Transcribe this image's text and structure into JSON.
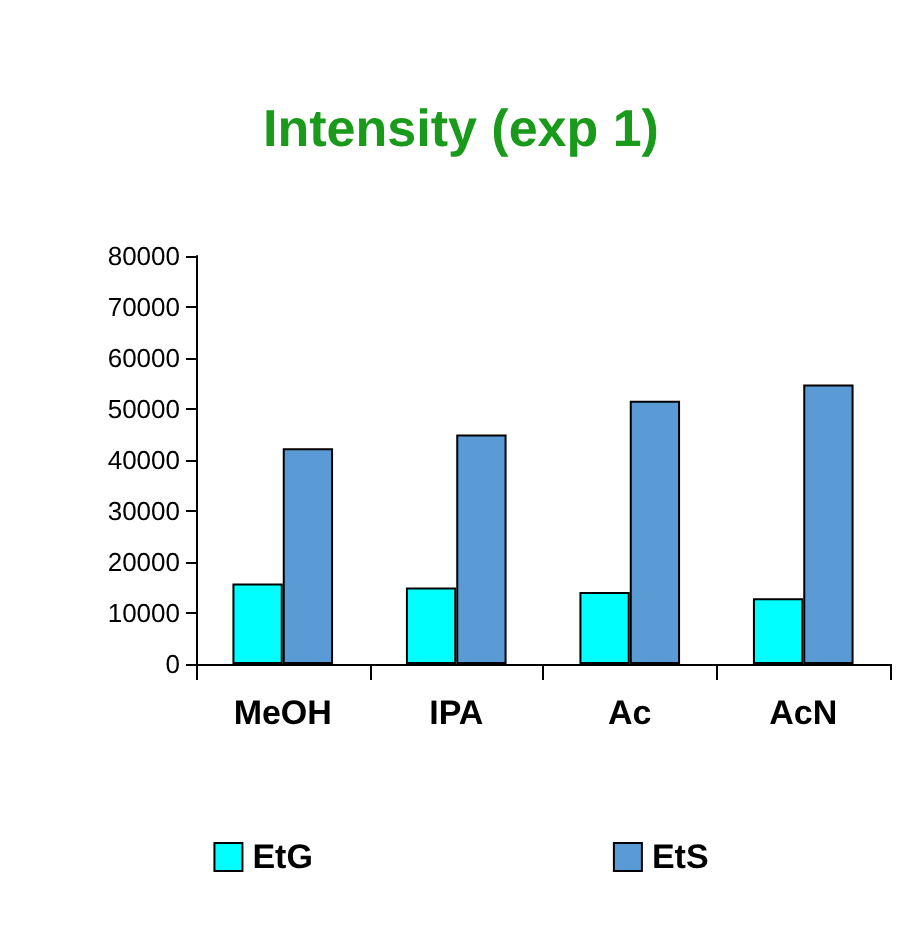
{
  "chart_data": {
    "type": "bar",
    "title": "Intensity (exp 1)",
    "categories": [
      "MeOH",
      "IPA",
      "Ac",
      "AcN"
    ],
    "series": [
      {
        "name": "EtG",
        "color": "#00ffff",
        "values": [
          15800,
          15000,
          14100,
          12900
        ]
      },
      {
        "name": "EtS",
        "color": "#5b9bd5",
        "values": [
          42300,
          45000,
          51600,
          54800
        ]
      }
    ],
    "ylim": [
      0,
      80000
    ],
    "yticks": [
      0,
      10000,
      20000,
      30000,
      40000,
      50000,
      60000,
      70000,
      80000
    ],
    "grid": false,
    "legend": "bottom"
  }
}
